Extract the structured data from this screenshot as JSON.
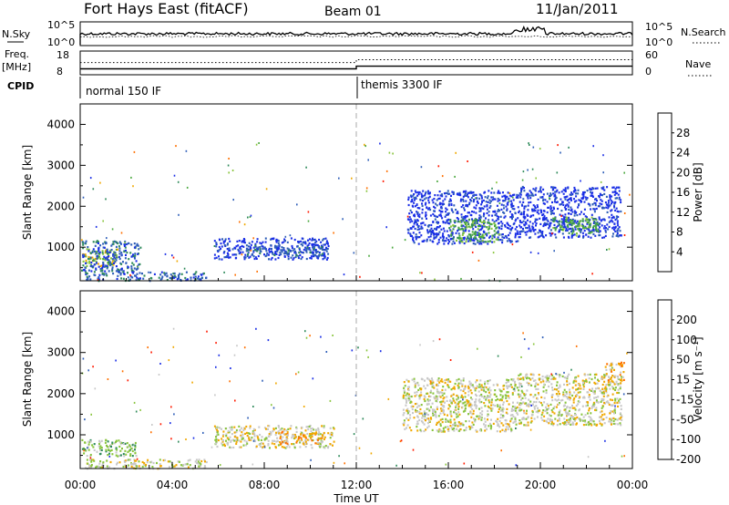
{
  "header": {
    "title": "Fort Hays East (fitACF)",
    "beam": "Beam 01",
    "date": "11/Jan/2011"
  },
  "chart_data": [
    {
      "type": "line",
      "panel": "noise",
      "left_label": "N.Sky",
      "right_label": "N.Search",
      "left_ticks": [
        "10^5",
        "10^0"
      ],
      "right_ticks": [
        "10^5",
        "10^0"
      ],
      "series": [
        {
          "name": "N.Sky",
          "style": "solid"
        },
        {
          "name": "N.Search",
          "style": "dotted"
        }
      ]
    },
    {
      "type": "line",
      "panel": "frequency",
      "left_label": "Freq.",
      "left_unit": "[MHz]",
      "right_label": "Nave",
      "left_ticks": [
        18,
        8
      ],
      "right_ticks": [
        60,
        0
      ],
      "series": [
        {
          "name": "Freq.",
          "style": "solid",
          "x": [
            0,
            12,
            12,
            24
          ],
          "y": [
            10.5,
            10.5,
            11.6,
            11.6
          ]
        },
        {
          "name": "Nave",
          "style": "dotted",
          "x": [
            0,
            12,
            12,
            24
          ],
          "y": [
            31,
            31,
            38,
            38
          ]
        }
      ]
    },
    {
      "type": "table",
      "panel": "cpid",
      "label": "CPID",
      "segments": [
        {
          "start": 0,
          "end": 12,
          "text": "normal 150 IF"
        },
        {
          "start": 12,
          "end": 24,
          "text": "themis 3300 IF"
        }
      ]
    },
    {
      "type": "heatmap",
      "panel": "power",
      "ylabel": "Slant Range [km]",
      "yticks": [
        1000,
        2000,
        3000,
        4000
      ],
      "ylim": [
        180,
        4500
      ],
      "xlim": [
        0,
        24
      ],
      "colorbar": {
        "label": "Power [dB]",
        "ticks": [
          "4",
          "8",
          "12",
          "16",
          "20",
          "24",
          "28"
        ],
        "colors": [
          "#1a2ee6",
          "#2e5eb8",
          "#2e8a5a",
          "#4aa83e",
          "#88c43c",
          "#f0a800",
          "#ff7000",
          "#ff1a00"
        ]
      },
      "regions": [
        {
          "t0": 0.0,
          "t1": 1.6,
          "r0": 560,
          "r1": 980,
          "level": 4
        },
        {
          "t0": 0.0,
          "t1": 2.6,
          "r0": 420,
          "r1": 1180,
          "level": 1
        },
        {
          "t0": 0.2,
          "t1": 5.5,
          "r0": 200,
          "r1": 420,
          "level": 1
        },
        {
          "t0": 5.8,
          "t1": 10.8,
          "r0": 720,
          "r1": 1240,
          "level": 0
        },
        {
          "t0": 7.2,
          "t1": 10.6,
          "r0": 820,
          "r1": 1080,
          "level": 1
        },
        {
          "t0": 14.2,
          "t1": 19.0,
          "r0": 1100,
          "r1": 2400,
          "level": 0
        },
        {
          "t0": 16.0,
          "t1": 18.2,
          "r0": 1150,
          "r1": 1700,
          "level": 3
        },
        {
          "t0": 19.0,
          "t1": 23.5,
          "r0": 1250,
          "r1": 2500,
          "level": 0
        },
        {
          "t0": 20.5,
          "t1": 22.5,
          "r0": 1350,
          "r1": 1750,
          "level": 3
        }
      ]
    },
    {
      "type": "heatmap",
      "panel": "velocity",
      "ylabel": "Slant Range [km]",
      "yticks": [
        1000,
        2000,
        3000,
        4000
      ],
      "ylim": [
        180,
        4500
      ],
      "xlim": [
        0,
        24
      ],
      "xlabel": "Time UT",
      "xticks": [
        "00:00",
        "04:00",
        "08:00",
        "12:00",
        "16:00",
        "20:00",
        "00:00"
      ],
      "colorbar": {
        "label": "Velocity [m s⁻¹]",
        "ticks": [
          "200",
          "100",
          "50",
          "15",
          "-15",
          "-50",
          "-100",
          "-200"
        ],
        "colors": [
          "#1a2ee6",
          "#2e5eb8",
          "#2e8a5a",
          "#88c43c",
          "#c8c8c8",
          "#f0a800",
          "#ff7000",
          "#ff1a00"
        ]
      },
      "regions": [
        {
          "t0": 0.0,
          "t1": 2.4,
          "r0": 500,
          "r1": 900,
          "level": 3
        },
        {
          "t0": 0.2,
          "t1": 5.5,
          "r0": 200,
          "r1": 420,
          "level": 4
        },
        {
          "t0": 5.8,
          "t1": 11.0,
          "r0": 700,
          "r1": 1250,
          "level": 4
        },
        {
          "t0": 8.5,
          "t1": 10.6,
          "r0": 800,
          "r1": 1100,
          "level": 5
        },
        {
          "t0": 14.0,
          "t1": 19.0,
          "r0": 1100,
          "r1": 2400,
          "level": 4
        },
        {
          "t0": 19.0,
          "t1": 23.5,
          "r0": 1250,
          "r1": 2500,
          "level": 4
        },
        {
          "t0": 22.8,
          "t1": 23.6,
          "r0": 2300,
          "r1": 2800,
          "level": 5
        }
      ]
    }
  ]
}
